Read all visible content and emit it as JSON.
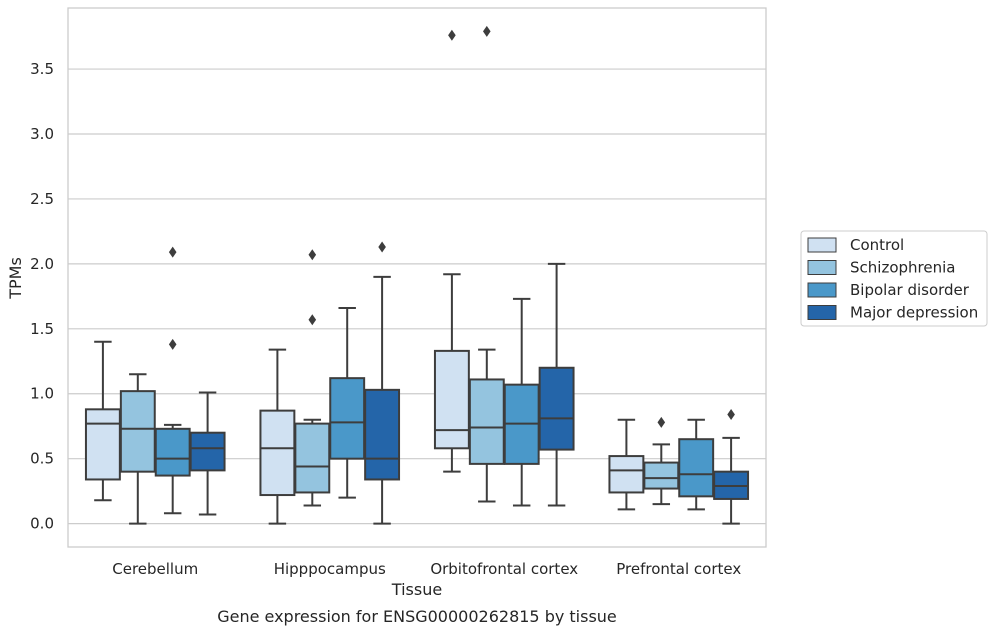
{
  "chart_data": {
    "type": "box",
    "title": "Gene expression for ENSG00000262815 by tissue",
    "xlabel": "Tissue",
    "ylabel": "TPMs",
    "ylim": [
      -0.18,
      3.97
    ],
    "yticks": [
      "0.0",
      "0.5",
      "1.0",
      "1.5",
      "2.0",
      "2.5",
      "3.0",
      "3.5"
    ],
    "grid": true,
    "legend_position": "right",
    "categories": [
      "Cerebellum",
      "Hipppocampus",
      "Orbitofrontal cortex",
      "Prefrontal cortex"
    ],
    "series": [
      {
        "name": "Control",
        "color": "#d0e1f2",
        "boxes": [
          {
            "whislo": 0.18,
            "q1": 0.34,
            "median": 0.77,
            "q3": 0.88,
            "whishi": 1.4,
            "fliers": []
          },
          {
            "whislo": 0.0,
            "q1": 0.22,
            "median": 0.58,
            "q3": 0.87,
            "whishi": 1.34,
            "fliers": []
          },
          {
            "whislo": 0.4,
            "q1": 0.58,
            "median": 0.72,
            "q3": 1.33,
            "whishi": 1.92,
            "fliers": [
              3.76
            ]
          },
          {
            "whislo": 0.11,
            "q1": 0.24,
            "median": 0.41,
            "q3": 0.52,
            "whishi": 0.8,
            "fliers": []
          }
        ]
      },
      {
        "name": "Schizophrenia",
        "color": "#94c4df",
        "boxes": [
          {
            "whislo": 0.0,
            "q1": 0.4,
            "median": 0.73,
            "q3": 1.02,
            "whishi": 1.15,
            "fliers": []
          },
          {
            "whislo": 0.14,
            "q1": 0.24,
            "median": 0.44,
            "q3": 0.77,
            "whishi": 0.8,
            "fliers": [
              1.57,
              2.07
            ]
          },
          {
            "whislo": 0.17,
            "q1": 0.46,
            "median": 0.74,
            "q3": 1.11,
            "whishi": 1.34,
            "fliers": [
              3.79
            ]
          },
          {
            "whislo": 0.15,
            "q1": 0.27,
            "median": 0.35,
            "q3": 0.47,
            "whishi": 0.61,
            "fliers": [
              0.78
            ]
          }
        ]
      },
      {
        "name": "Bipolar disorder",
        "color": "#4a98c9",
        "boxes": [
          {
            "whislo": 0.08,
            "q1": 0.37,
            "median": 0.5,
            "q3": 0.73,
            "whishi": 0.76,
            "fliers": [
              1.38,
              2.09
            ]
          },
          {
            "whislo": 0.2,
            "q1": 0.5,
            "median": 0.78,
            "q3": 1.12,
            "whishi": 1.66,
            "fliers": []
          },
          {
            "whislo": 0.14,
            "q1": 0.46,
            "median": 0.77,
            "q3": 1.07,
            "whishi": 1.73,
            "fliers": []
          },
          {
            "whislo": 0.11,
            "q1": 0.21,
            "median": 0.38,
            "q3": 0.65,
            "whishi": 0.8,
            "fliers": []
          }
        ]
      },
      {
        "name": "Major depression",
        "color": "#2465a9",
        "boxes": [
          {
            "whislo": 0.07,
            "q1": 0.41,
            "median": 0.58,
            "q3": 0.7,
            "whishi": 1.01,
            "fliers": []
          },
          {
            "whislo": 0.0,
            "q1": 0.34,
            "median": 0.5,
            "q3": 1.03,
            "whishi": 1.9,
            "fliers": [
              2.13
            ]
          },
          {
            "whislo": 0.14,
            "q1": 0.57,
            "median": 0.81,
            "q3": 1.2,
            "whishi": 2.0,
            "fliers": []
          },
          {
            "whislo": 0.0,
            "q1": 0.19,
            "median": 0.29,
            "q3": 0.4,
            "whishi": 0.66,
            "fliers": [
              0.84
            ]
          }
        ]
      }
    ]
  }
}
